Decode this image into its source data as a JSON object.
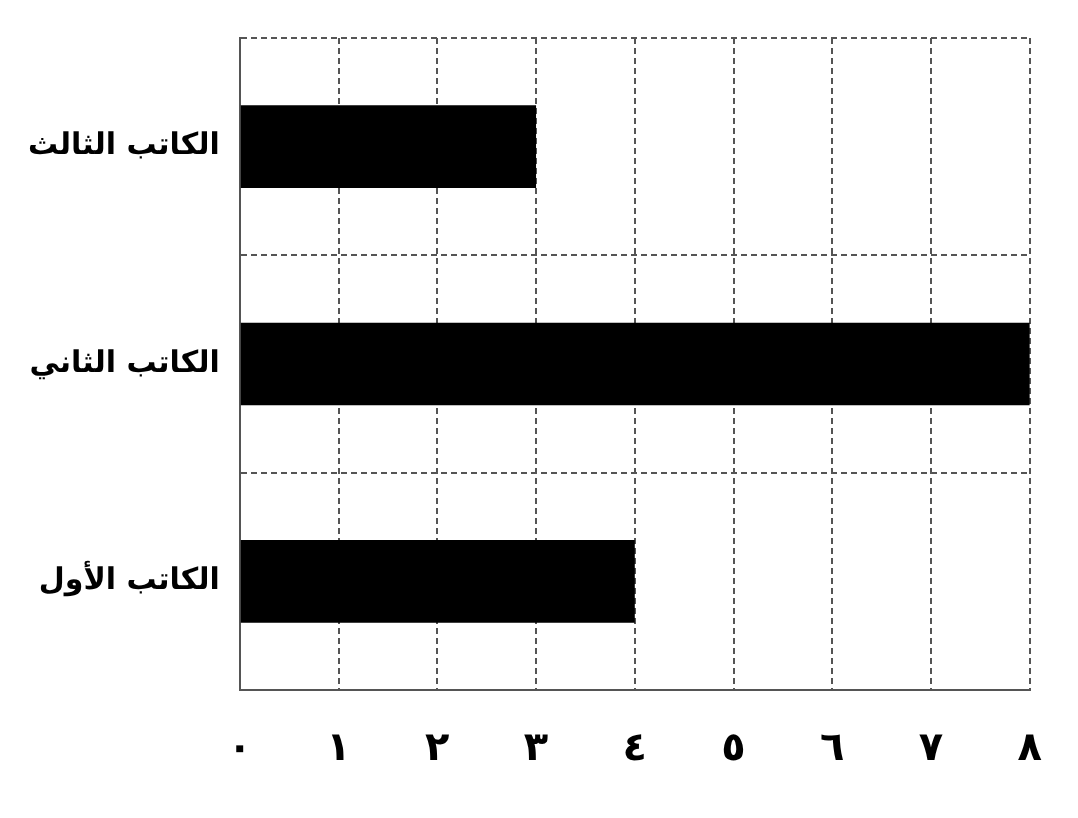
{
  "chart_data": {
    "type": "bar",
    "orientation": "horizontal",
    "categories": [
      "الكاتب الثالث",
      "الكاتب الثاني",
      "الكاتب الأول"
    ],
    "values": [
      3,
      8,
      4
    ],
    "color": "#000000",
    "xlim": [
      0,
      8
    ],
    "xticks": [
      {
        "value": 0,
        "label": "٠"
      },
      {
        "value": 1,
        "label": "١"
      },
      {
        "value": 2,
        "label": "٢"
      },
      {
        "value": 3,
        "label": "٣"
      },
      {
        "value": 4,
        "label": "٤"
      },
      {
        "value": 5,
        "label": "٥"
      },
      {
        "value": 6,
        "label": "٦"
      },
      {
        "value": 7,
        "label": "٧"
      },
      {
        "value": 8,
        "label": "٨"
      }
    ],
    "grid": true
  }
}
